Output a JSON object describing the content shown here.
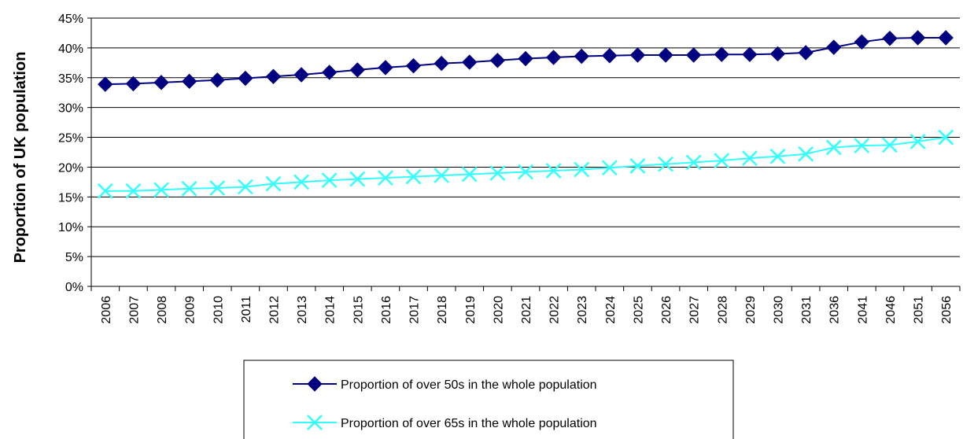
{
  "chart_data": {
    "type": "line",
    "title": "",
    "xlabel": "",
    "ylabel": "Proportion of UK population",
    "ylim": [
      0,
      45
    ],
    "y_ticks": [
      "0%",
      "5%",
      "10%",
      "15%",
      "20%",
      "25%",
      "30%",
      "35%",
      "40%",
      "45%"
    ],
    "y_grid": true,
    "legend_position": "bottom-center",
    "categories": [
      "2006",
      "2007",
      "2008",
      "2009",
      "2010",
      "2011",
      "2012",
      "2013",
      "2014",
      "2015",
      "2016",
      "2017",
      "2018",
      "2019",
      "2020",
      "2021",
      "2022",
      "2023",
      "2024",
      "2025",
      "2026",
      "2027",
      "2028",
      "2029",
      "2030",
      "2031",
      "2036",
      "2041",
      "2046",
      "2051",
      "2056"
    ],
    "series": [
      {
        "name": "Proportion of over 50s in the whole population",
        "color": "#000080",
        "marker": "diamond",
        "values": [
          33.9,
          34.0,
          34.2,
          34.4,
          34.6,
          34.9,
          35.2,
          35.5,
          35.9,
          36.3,
          36.7,
          37.0,
          37.4,
          37.6,
          37.9,
          38.2,
          38.4,
          38.6,
          38.7,
          38.8,
          38.8,
          38.8,
          38.9,
          38.9,
          39.0,
          39.2,
          40.1,
          41.0,
          41.6,
          41.7,
          41.7
        ]
      },
      {
        "name": "Proportion of over 65s in the whole population",
        "color": "#33FFFF",
        "marker": "x",
        "values": [
          16.0,
          16.0,
          16.2,
          16.4,
          16.5,
          16.7,
          17.2,
          17.5,
          17.8,
          18.0,
          18.2,
          18.4,
          18.6,
          18.8,
          19.0,
          19.2,
          19.4,
          19.6,
          19.9,
          20.2,
          20.5,
          20.8,
          21.1,
          21.5,
          21.8,
          22.2,
          23.3,
          23.6,
          23.7,
          24.3,
          25.0
        ]
      }
    ]
  }
}
